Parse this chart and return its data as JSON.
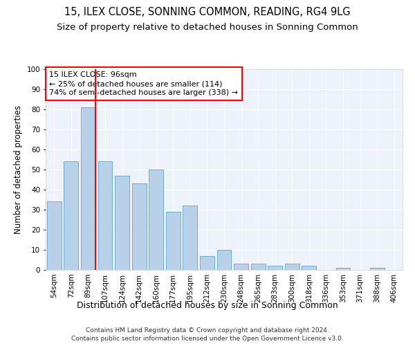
{
  "title": "15, ILEX CLOSE, SONNING COMMON, READING, RG4 9LG",
  "subtitle": "Size of property relative to detached houses in Sonning Common",
  "xlabel": "Distribution of detached houses by size in Sonning Common",
  "ylabel": "Number of detached properties",
  "categories": [
    "54sqm",
    "72sqm",
    "89sqm",
    "107sqm",
    "124sqm",
    "142sqm",
    "160sqm",
    "177sqm",
    "195sqm",
    "212sqm",
    "230sqm",
    "248sqm",
    "265sqm",
    "283sqm",
    "300sqm",
    "318sqm",
    "336sqm",
    "353sqm",
    "371sqm",
    "388sqm",
    "406sqm"
  ],
  "values": [
    34,
    54,
    81,
    54,
    47,
    43,
    50,
    29,
    32,
    7,
    10,
    3,
    3,
    2,
    3,
    2,
    0,
    1,
    0,
    1,
    0
  ],
  "bar_color": "#b8d0e8",
  "bar_edge_color": "#6aaed6",
  "red_line_index": 2,
  "annotation_line1": "15 ILEX CLOSE: 96sqm",
  "annotation_line2": "← 25% of detached houses are smaller (114)",
  "annotation_line3": "74% of semi-detached houses are larger (338) →",
  "footer_line1": "Contains HM Land Registry data © Crown copyright and database right 2024.",
  "footer_line2": "Contains public sector information licensed under the Open Government Licence v3.0.",
  "ylim": [
    0,
    100
  ],
  "yticks": [
    0,
    10,
    20,
    30,
    40,
    50,
    60,
    70,
    80,
    90,
    100
  ],
  "plot_bg_color": "#eef2fa",
  "title_fontsize": 10.5,
  "subtitle_fontsize": 9.5,
  "xlabel_fontsize": 9,
  "ylabel_fontsize": 8.5,
  "tick_fontsize": 7.5,
  "annotation_fontsize": 8,
  "footer_fontsize": 6.5
}
